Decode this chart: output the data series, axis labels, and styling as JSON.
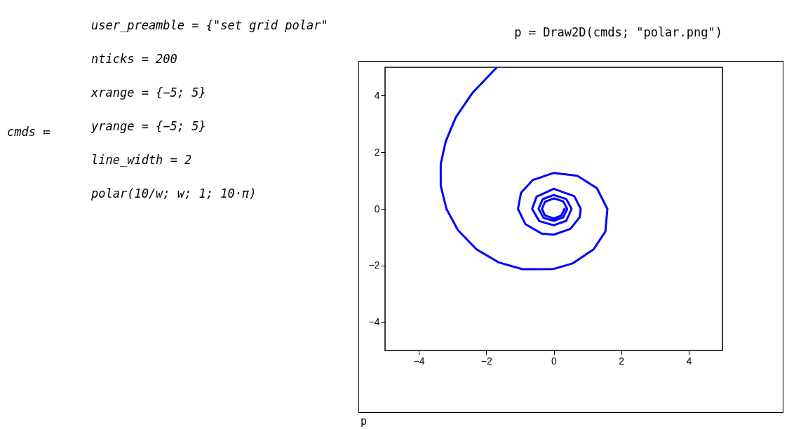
{
  "chart_data": {
    "type": "line",
    "title": "p ≔ Draw2D(cmds; \"polar.png\")",
    "annotations": [
      "cmds ≔",
      "user_preamble = {\"set grid polar\"",
      "nticks = 200",
      "xrange = {−5; 5}",
      "yrange = {−5; 5}",
      "line_width = 2",
      "polar(10/w; w; 1; 10·π)",
      "p"
    ],
    "xlim": [
      -5,
      5
    ],
    "ylim": [
      -5,
      5
    ],
    "xticks": [
      -4,
      -2,
      0,
      2,
      4
    ],
    "yticks": [
      -4,
      -2,
      0,
      2,
      4
    ],
    "series": [
      {
        "color": "#0000ff",
        "x": [
          -1.7,
          -2.4,
          -2.9,
          -3.2,
          -3.35,
          -3.35,
          -3.18,
          -2.84,
          -2.29,
          -1.63,
          -0.93,
          0,
          0.57,
          1.18,
          1.53,
          1.59,
          1.28,
          0.7,
          0,
          -0.62,
          -0.97,
          -1.06,
          -0.84,
          -0.36,
          0,
          0.49,
          0.77,
          0.8,
          0.61,
          0,
          -0.51,
          -0.64,
          -0.43,
          0,
          0.37,
          0.53,
          0.37,
          0,
          -0.33,
          -0.45,
          -0.3,
          0,
          0.28,
          0.4,
          0.28,
          0,
          -0.26,
          -0.35,
          -0.26,
          0,
          0.22,
          0.32
        ],
        "values": [
          4.98,
          4.11,
          3.24,
          2.39,
          1.58,
          0.82,
          0,
          -0.75,
          -1.43,
          -1.89,
          -2.13,
          -2.12,
          -1.92,
          -1.43,
          -0.8,
          0,
          0.73,
          1.17,
          1.27,
          1.02,
          0.57,
          0,
          -0.54,
          -0.87,
          -0.91,
          -0.71,
          -0.29,
          0,
          0.45,
          0.71,
          0.43,
          0,
          -0.43,
          -0.58,
          -0.42,
          0,
          0.35,
          0.49,
          0.34,
          0,
          -0.32,
          -0.42,
          -0.3,
          0,
          0.27,
          0.37,
          0.25,
          0,
          -0.23,
          -0.34,
          -0.24,
          0
        ]
      }
    ]
  }
}
